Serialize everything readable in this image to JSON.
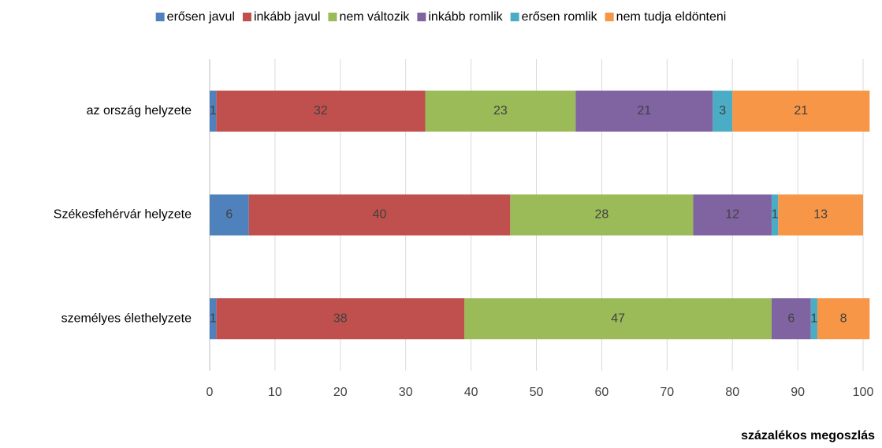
{
  "chart_data": {
    "type": "stacked-barh",
    "categories": [
      "az ország helyzete",
      "Székesfehérvár helyzete",
      "személyes élethelyzete"
    ],
    "series": [
      {
        "name": "erősen javul",
        "color": "#4f81bd",
        "values": [
          1,
          6,
          1
        ]
      },
      {
        "name": "inkább javul",
        "color": "#c0504d",
        "values": [
          32,
          40,
          38
        ]
      },
      {
        "name": "nem változik",
        "color": "#9bbb59",
        "values": [
          23,
          28,
          47
        ]
      },
      {
        "name": "inkább romlik",
        "color": "#8064a2",
        "values": [
          21,
          12,
          6
        ]
      },
      {
        "name": "erősen romlik",
        "color": "#4bacc6",
        "values": [
          3,
          1,
          1
        ]
      },
      {
        "name": "nem tudja eldönteni",
        "color": "#f79646",
        "values": [
          21,
          13,
          8
        ]
      }
    ],
    "xlim": [
      0,
      100
    ],
    "xticks": [
      0,
      10,
      20,
      30,
      40,
      50,
      60,
      70,
      80,
      90,
      100
    ],
    "xlabel": "százalékos megoszlás",
    "grid": true,
    "legend": "top"
  }
}
